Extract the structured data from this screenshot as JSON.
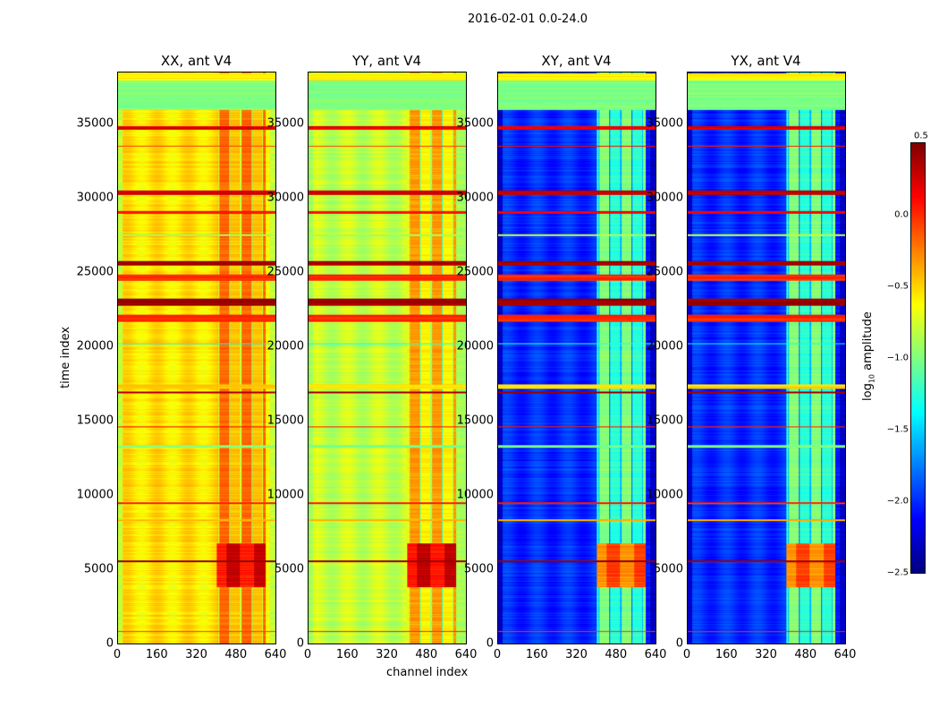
{
  "suptitle": "2016-02-01 0.0-24.0",
  "chart_data": {
    "type": "heatmap",
    "title": "2016-02-01 0.0-24.0",
    "xlabel": "channel index",
    "ylabel": "time index",
    "xlim": [
      0,
      640
    ],
    "ylim": [
      0,
      38500
    ],
    "xticks": [
      "0",
      "160",
      "320",
      "480",
      "640"
    ],
    "yticks": [
      "0",
      "5000",
      "10000",
      "15000",
      "20000",
      "25000",
      "30000",
      "35000"
    ],
    "colorbar": {
      "label": "log10 amplitude",
      "label_main": "log",
      "label_sub": "10",
      "label_tail": " amplitude",
      "range": [
        -2.5,
        0.5
      ],
      "ticks": [
        "0.5",
        "0.0",
        "−0.5",
        "−1.0",
        "−1.5",
        "−2.0",
        "−2.5"
      ],
      "colormap": "jet"
    },
    "panels": [
      {
        "title": "XX, ant V4",
        "base": -0.55,
        "edge": -0.8,
        "active": -0.3,
        "block": 0.3
      },
      {
        "title": "YY, ant V4",
        "base": -0.8,
        "edge": -0.9,
        "active": -0.45,
        "block": 0.3
      },
      {
        "title": "XY, ant V4",
        "base": -2.0,
        "edge": -2.3,
        "active": -1.1,
        "block": -0.05
      },
      {
        "title": "YX, ant V4",
        "base": -2.0,
        "edge": -2.3,
        "active": -1.1,
        "block": -0.05
      }
    ],
    "active_channels": [
      400,
      600
    ],
    "block_time": [
      3800,
      6800
    ],
    "time_bands": [
      {
        "t": [
          36000,
          38000
        ],
        "v": -1.0
      },
      {
        "t": [
          38000,
          38500
        ],
        "v": -0.6
      },
      {
        "t": [
          22800,
          23300
        ],
        "v": 0.4
      },
      {
        "t": [
          21700,
          22200
        ],
        "v": 0.0
      },
      {
        "t": [
          24500,
          24900
        ],
        "v": 0.0
      },
      {
        "t": [
          25500,
          25800
        ],
        "v": 0.4
      },
      {
        "t": [
          30300,
          30600
        ],
        "v": 0.3
      },
      {
        "t": [
          34700,
          34900
        ],
        "v": 0.2
      },
      {
        "t": [
          33500,
          33600
        ],
        "v": 0.0
      },
      {
        "t": [
          13200,
          13400
        ],
        "v": -1.0
      },
      {
        "t": [
          17200,
          17500
        ],
        "v": -0.5
      },
      {
        "t": [
          16900,
          17000
        ],
        "v": 0.4
      },
      {
        "t": [
          9400,
          9550
        ],
        "v": 0.0
      },
      {
        "t": [
          5500,
          5650
        ],
        "v": 0.4
      },
      {
        "t": [
          800,
          900
        ],
        "v": 0.0
      },
      {
        "t": [
          14600,
          14700
        ],
        "v": 0.0
      },
      {
        "t": [
          27500,
          27600
        ],
        "v": -0.9
      },
      {
        "t": [
          29000,
          29200
        ],
        "v": 0.1
      },
      {
        "t": [
          20200,
          20300
        ],
        "v": -1.3
      },
      {
        "t": [
          8300,
          8400
        ],
        "v": -0.4
      }
    ]
  }
}
